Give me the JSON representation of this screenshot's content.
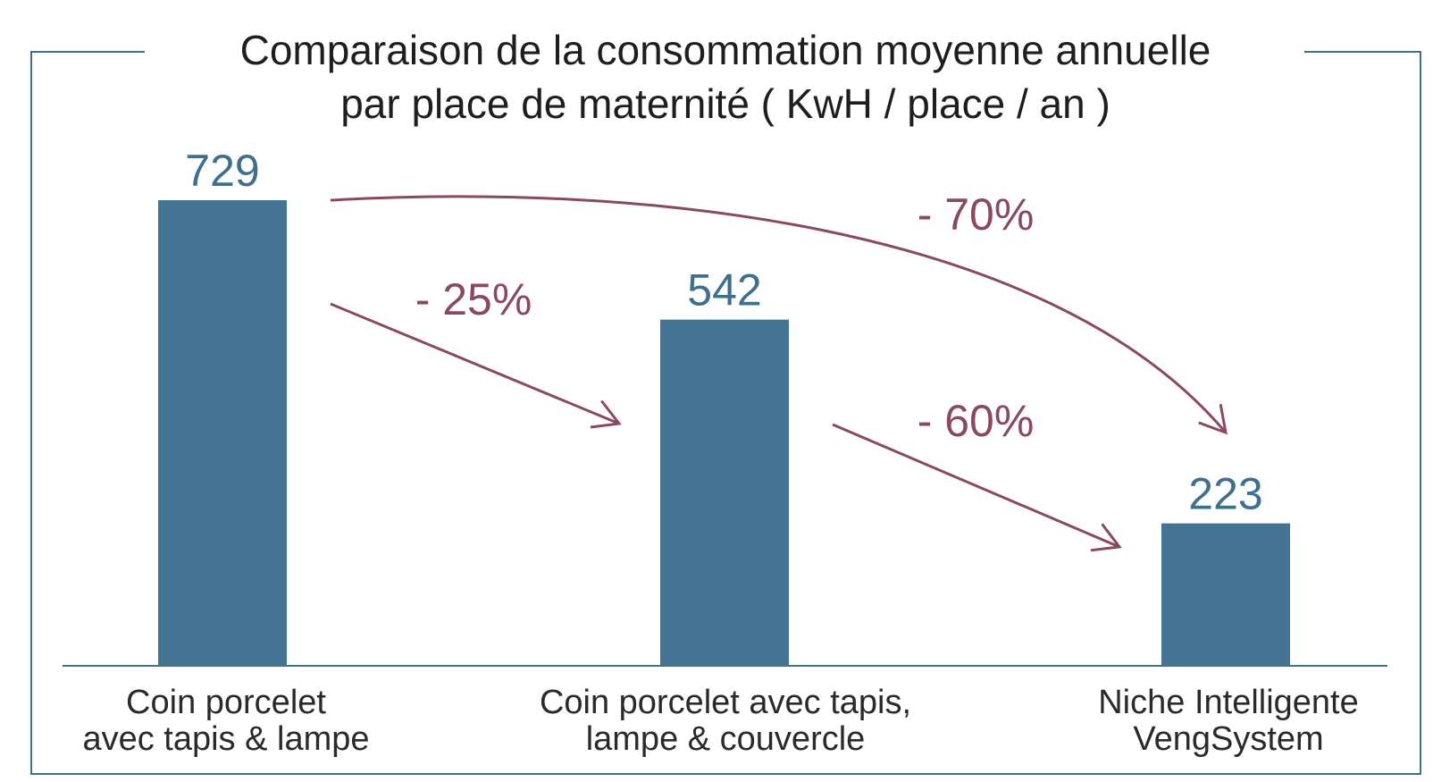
{
  "chart_data": {
    "type": "bar",
    "title": [
      "Comparaison de la consommation moyenne annuelle",
      "par place de maternité ( KwH / place / an )"
    ],
    "categories": [
      [
        "Coin porcelet",
        "avec tapis & lampe"
      ],
      [
        "Coin porcelet avec tapis,",
        "lampe & couvercle"
      ],
      [
        "Niche Intelligente",
        "VengSystem"
      ]
    ],
    "values": [
      729,
      542,
      223
    ],
    "value_labels": [
      "729",
      "542",
      "223"
    ],
    "ylim": [
      0,
      729
    ],
    "grid": false,
    "legend": "none",
    "annotations": [
      {
        "label": "- 25%",
        "from": 0,
        "to": 1
      },
      {
        "label": "- 60%",
        "from": 1,
        "to": 2
      },
      {
        "label": "- 70%",
        "from": 0,
        "to": 2
      }
    ],
    "colors": {
      "bar": "#437493",
      "value_text": "#3f6f8f",
      "arrow": "#8a4960",
      "frame": "#3f6f8f",
      "axis": "#3f6f8f"
    }
  }
}
